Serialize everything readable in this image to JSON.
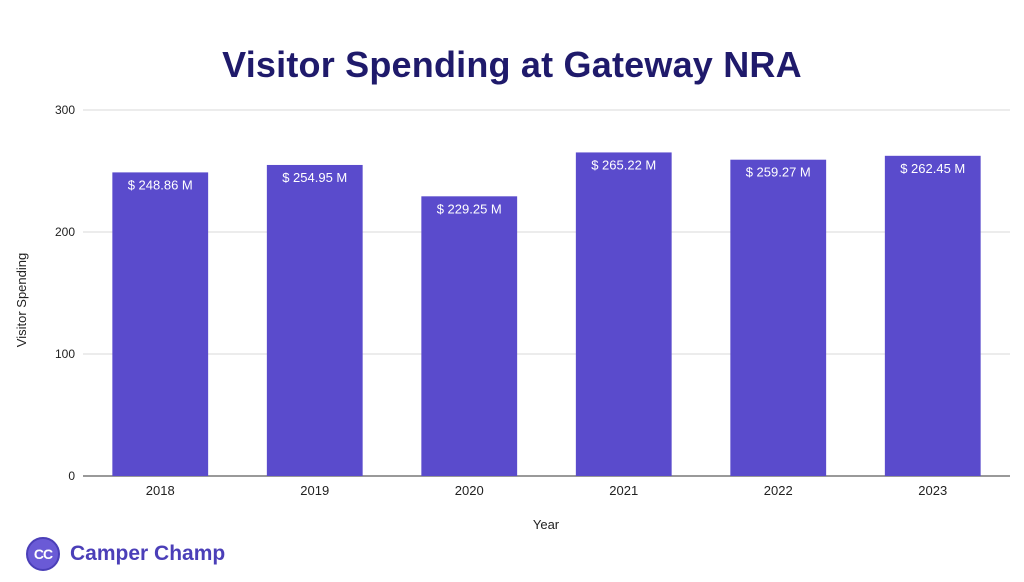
{
  "chart_data": {
    "type": "bar",
    "title": "Visitor Spending at Gateway NRA",
    "xlabel": "Year",
    "ylabel": "Visitor Spending",
    "categories": [
      "2018",
      "2019",
      "2020",
      "2021",
      "2022",
      "2023"
    ],
    "values": [
      248.86,
      254.95,
      229.25,
      265.22,
      259.27,
      262.45
    ],
    "data_labels": [
      "$ 248.86 M",
      "$ 254.95 M",
      "$ 229.25 M",
      "$ 265.22 M",
      "$ 259.27 M",
      "$ 262.45 M"
    ],
    "ylim": [
      0,
      300
    ],
    "yticks": [
      0,
      100,
      200,
      300
    ],
    "grid": true,
    "legend": "none",
    "bar_color": "#5a4bcc"
  },
  "branding": {
    "logo_initials": "CC",
    "logo_text": "Camper Champ",
    "accent_color": "#4b3fb8"
  }
}
